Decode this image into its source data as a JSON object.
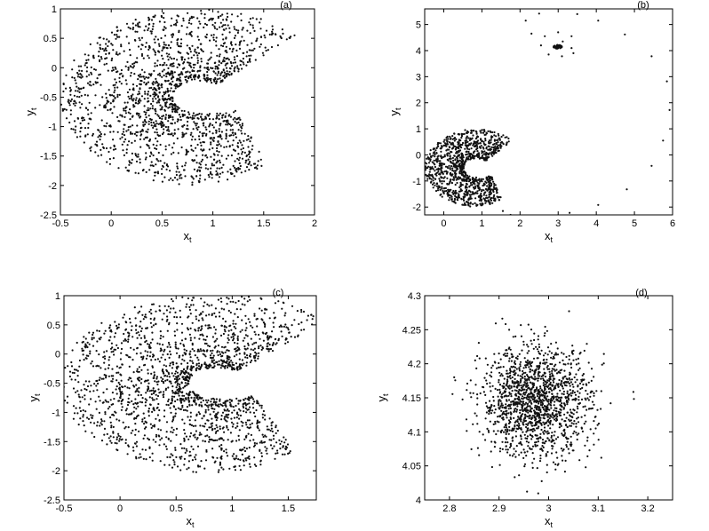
{
  "chart_data": [
    {
      "type": "scatter",
      "panel_label": "(a)",
      "xlabel": "x",
      "xlabel_sub": "t",
      "ylabel": "y",
      "ylabel_sub": "t",
      "xlim": [
        -0.5,
        2
      ],
      "ylim": [
        -2.5,
        1
      ],
      "xticks": [
        -0.5,
        0,
        0.5,
        1,
        1.5,
        2
      ],
      "yticks": [
        -2.5,
        -2,
        -1.5,
        -1,
        -0.5,
        0,
        0.5,
        1
      ],
      "xtick_labels": [
        "-0.5",
        "0",
        "0.5",
        "1",
        "1.5",
        "2"
      ],
      "ytick_labels": [
        "-2.5",
        "-2",
        "-1.5",
        "-1",
        "-0.5",
        "0",
        "0.5",
        "1"
      ],
      "shape": {
        "kind": "crescent",
        "cx": 0.86,
        "cy": -0.5,
        "arcs": [
          {
            "r": 1.26,
            "w": 0.07
          },
          {
            "r": 1.15,
            "w": 0.06
          },
          {
            "r": 1.02,
            "w": 0.08
          },
          {
            "r": 0.86,
            "w": 0.07
          },
          {
            "r": 0.72,
            "w": 0.09
          },
          {
            "r": 0.58,
            "w": 0.07
          },
          {
            "r": 0.44,
            "w": 0.06
          },
          {
            "r": 0.3,
            "w": 0.05
          }
        ],
        "n": 1800,
        "tail_x": 1.67,
        "tail_y": -1.22
      }
    },
    {
      "type": "scatter",
      "panel_label": "(b)",
      "xlabel": "x",
      "xlabel_sub": "t",
      "ylabel": "y",
      "ylabel_sub": "t",
      "xlim": [
        -0.5,
        6
      ],
      "ylim": [
        -2.3,
        5.6
      ],
      "xticks": [
        0,
        1,
        2,
        3,
        4,
        5,
        6
      ],
      "yticks": [
        -2,
        -1,
        0,
        1,
        2,
        3,
        4,
        5
      ],
      "xtick_labels": [
        "0",
        "1",
        "2",
        "3",
        "4",
        "5",
        "6"
      ],
      "ytick_labels": [
        "-2",
        "-1",
        "0",
        "1",
        "2",
        "3",
        "4",
        "5"
      ],
      "shape": {
        "kind": "crescent",
        "cx": 0.86,
        "cy": -0.5,
        "arcs": [
          {
            "r": 1.26,
            "w": 0.07
          },
          {
            "r": 1.1,
            "w": 0.08
          },
          {
            "r": 0.92,
            "w": 0.09
          },
          {
            "r": 0.74,
            "w": 0.09
          },
          {
            "r": 0.56,
            "w": 0.08
          },
          {
            "r": 0.4,
            "w": 0.07
          }
        ],
        "n": 1100,
        "tail_x": 1.67,
        "tail_y": -1.22
      },
      "transient": {
        "cluster": {
          "x": 2.98,
          "y": 4.15,
          "r": 0.15,
          "n": 60
        },
        "spiral": [
          [
            3.12,
            4.35
          ],
          [
            3.35,
            4.1
          ],
          [
            3.4,
            3.9
          ],
          [
            3.1,
            3.78
          ],
          [
            2.75,
            3.85
          ],
          [
            2.55,
            4.2
          ],
          [
            2.65,
            4.55
          ],
          [
            3.0,
            4.7
          ],
          [
            3.35,
            4.55
          ],
          [
            2.3,
            4.65
          ],
          [
            2.15,
            5.15
          ],
          [
            2.5,
            5.42
          ],
          [
            3.5,
            5.4
          ],
          [
            4.05,
            5.15
          ],
          [
            4.75,
            4.62
          ],
          [
            5.45,
            3.78
          ],
          [
            5.85,
            2.82
          ],
          [
            5.92,
            1.72
          ],
          [
            5.75,
            0.55
          ],
          [
            5.45,
            -0.42
          ],
          [
            4.8,
            -1.32
          ],
          [
            4.05,
            -1.92
          ],
          [
            3.3,
            -2.22
          ],
          [
            2.6,
            -2.32
          ],
          [
            2.3,
            -2.38
          ],
          [
            1.95,
            -2.45
          ],
          [
            1.75,
            -2.3
          ],
          [
            1.55,
            -2.15
          ]
        ]
      }
    },
    {
      "type": "scatter",
      "panel_label": "(c)",
      "xlabel": "x",
      "xlabel_sub": "t",
      "ylabel": "y",
      "ylabel_sub": "t",
      "xlim": [
        -0.5,
        1.75
      ],
      "ylim": [
        -2.5,
        1
      ],
      "xticks": [
        -0.5,
        0,
        0.5,
        1,
        1.5
      ],
      "yticks": [
        -2.5,
        -2,
        -1.5,
        -1,
        -0.5,
        0,
        0.5,
        1
      ],
      "xtick_labels": [
        "-0.5",
        "0",
        "0.5",
        "1",
        "1.5"
      ],
      "ytick_labels": [
        "-2.5",
        "-2",
        "-1.5",
        "-1",
        "-0.5",
        "0",
        "0.5",
        "1"
      ],
      "shape": {
        "kind": "crescent",
        "cx": 0.86,
        "cy": -0.5,
        "arcs": [
          {
            "r": 1.28,
            "w": 0.09
          },
          {
            "r": 1.12,
            "w": 0.1
          },
          {
            "r": 0.95,
            "w": 0.11
          },
          {
            "r": 0.78,
            "w": 0.11
          },
          {
            "r": 0.6,
            "w": 0.1
          },
          {
            "r": 0.43,
            "w": 0.09
          },
          {
            "r": 0.3,
            "w": 0.06
          }
        ],
        "n": 1900,
        "tail_x": 1.65,
        "tail_y": -1.22
      }
    },
    {
      "type": "scatter",
      "panel_label": "(d)",
      "xlabel": "x",
      "xlabel_sub": "t",
      "ylabel": "y",
      "ylabel_sub": "t",
      "xlim": [
        2.75,
        3.25
      ],
      "ylim": [
        4.0,
        4.3
      ],
      "xticks": [
        2.8,
        2.9,
        3.0,
        3.1,
        3.2
      ],
      "yticks": [
        4.0,
        4.05,
        4.1,
        4.15,
        4.2,
        4.25,
        4.3
      ],
      "xtick_labels": [
        "2.8",
        "2.9",
        "3",
        "3.1",
        "3.2"
      ],
      "ytick_labels": [
        "4",
        "4.05",
        "4.1",
        "4.15",
        "4.2",
        "4.25",
        "4.3"
      ],
      "shape": {
        "kind": "gaussian",
        "mx": 2.975,
        "my": 4.145,
        "sx": 0.055,
        "sy": 0.04,
        "n": 1500
      }
    }
  ]
}
